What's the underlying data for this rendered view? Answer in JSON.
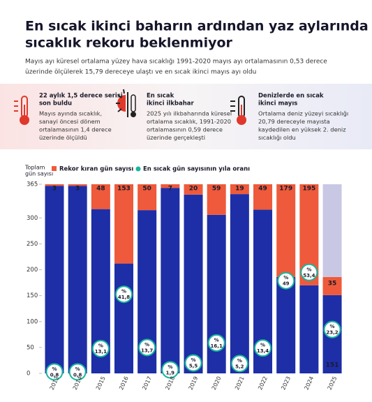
{
  "header": {
    "title_lines": [
      "En sıcak ikinci baharın ardından yaz aylarında",
      "sıcaklık rekoru beklenmiyor"
    ],
    "subtitle_lines": [
      "Mayıs ayı küresel ortalama yüzey hava sıcaklığı 1991-2020 mayıs ayı ortalamasının 0,53 derece",
      "üzerinde ölçülerek 15,79 dereceye ulaştı ve en sıcak ikinci mayıs ayı oldu"
    ]
  },
  "facts": [
    {
      "heading_lines": [
        "22 aylık 1,5 derece serisi",
        "son buldu"
      ],
      "body_lines": [
        "Mayıs ayında sıcaklık,",
        "sanayi öncesi dönem",
        "ortalamasının 1,4 derece",
        "üzerinde ölçüldü"
      ]
    },
    {
      "heading_lines": [
        "En sıcak",
        "ikinci ilkbahar"
      ],
      "body_lines": [
        "2025 yılı ilkbaharında küresel",
        "ortalama sıcaklık, 1991-2020",
        "ortalamasının 0,59 derece",
        "üzerinde gerçekleşti"
      ]
    },
    {
      "heading_lines": [
        "Denizlerde en sıcak",
        "ikinci mayıs"
      ],
      "body_lines": [
        "Ortalama deniz yüzeyi sıcaklığı",
        "20,79 dereceyle mayısta",
        "kaydedilen en yüksek 2. deniz",
        "sıcaklığı oldu"
      ]
    }
  ],
  "chart_data": {
    "type": "bar",
    "stacked": true,
    "ylabel_lines": [
      "Toplam",
      "gün sayısı"
    ],
    "categories": [
      "2013",
      "2014",
      "2015",
      "2016",
      "2017",
      "2018",
      "2019",
      "2020",
      "2021",
      "2022",
      "2023",
      "2024",
      "2025"
    ],
    "ylim": [
      0,
      365
    ],
    "yticks": [
      0,
      50,
      100,
      150,
      200,
      250,
      300,
      365
    ],
    "base_color": "#1e2ea6",
    "base_values": [
      362,
      362,
      317,
      212,
      315,
      358,
      345,
      306,
      346,
      316,
      186,
      170,
      151
    ],
    "remaining_color": "#c8c8e4",
    "remaining_values": [
      null,
      null,
      null,
      null,
      null,
      null,
      null,
      null,
      null,
      null,
      null,
      null,
      179
    ],
    "series": [
      {
        "name": "Rekor kıran gün sayısı",
        "color": "#ee5a3b",
        "values": [
          3,
          3,
          48,
          153,
          50,
          7,
          20,
          59,
          19,
          49,
          179,
          195,
          35
        ]
      },
      {
        "name": "En sıcak gün sayısının yıla oranı",
        "color": "#17b79e",
        "percent_sign": "%",
        "values": [
          0.8,
          0.8,
          13.1,
          41.8,
          13.7,
          1.9,
          5.5,
          16.1,
          5.2,
          13.4,
          49,
          53.4,
          23.2
        ],
        "value_labels": [
          "0,8",
          "0,8",
          "13,1",
          "41,8",
          "13,7",
          "1,9",
          "5,5",
          "16,1",
          "5,2",
          "13,4",
          "49",
          "53,4",
          "23,2"
        ]
      }
    ]
  }
}
